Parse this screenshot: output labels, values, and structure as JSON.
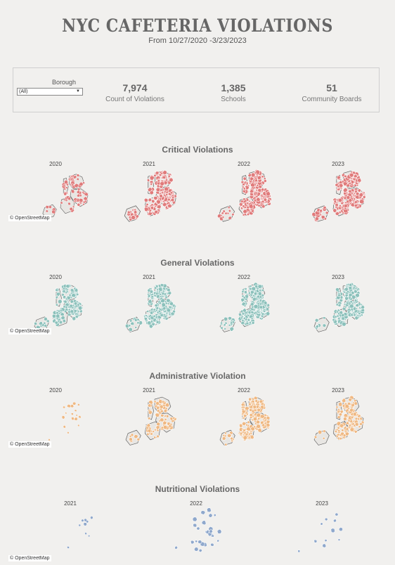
{
  "header": {
    "title": "NYC CAFETERIA VIOLATIONS",
    "subtitle": "From  10/27/2020 -3/23/2023"
  },
  "filter": {
    "label": "Borough",
    "value": "(All)"
  },
  "kpis": [
    {
      "value": "7,974",
      "label": "Count of Violations"
    },
    {
      "value": "1,385",
      "label": "Schools"
    },
    {
      "value": "51",
      "label": "Community Boards"
    }
  ],
  "sections": [
    {
      "title": "Critical Violations",
      "color": "#e07b7b",
      "years": [
        "2020",
        "2021",
        "2022",
        "2023"
      ]
    },
    {
      "title": "General Violations",
      "color": "#8cc1bb",
      "years": [
        "2020",
        "2021",
        "2022",
        "2023"
      ]
    },
    {
      "title": "Administrative Violation",
      "color": "#efb882",
      "years": [
        "2020",
        "2021",
        "2022",
        "2023"
      ]
    },
    {
      "title": "Nutritional Violations",
      "color": "#8fa8cc",
      "years": [
        "2021",
        "2022",
        "2023"
      ]
    }
  ],
  "attribution": "© OpenStreetMap"
}
